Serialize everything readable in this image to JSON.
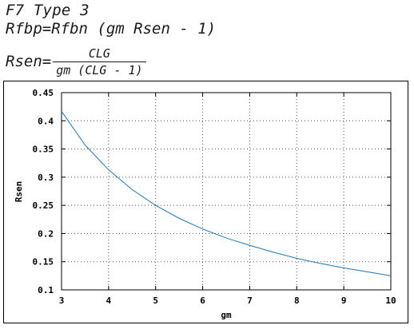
{
  "header": {
    "title": "F7 Type 3",
    "eq1_text": "Rfbp=Rfbn (gm Rsen - 1)",
    "eq2_lhs": "Rsen=",
    "eq2_numerator": "CLG",
    "eq2_denominator": "gm (CLG - 1)"
  },
  "chart_data": {
    "type": "line",
    "xlabel": "gm",
    "ylabel": "Rsen",
    "xlim": [
      3,
      10
    ],
    "ylim": [
      0.1,
      0.45
    ],
    "x_ticks": [
      "3",
      "4",
      "5",
      "6",
      "7",
      "8",
      "9",
      "10"
    ],
    "y_ticks": [
      "0.1",
      "0.15",
      "0.2",
      "0.25",
      "0.3",
      "0.35",
      "0.4",
      "0.45"
    ],
    "grid": true,
    "series": [
      {
        "color": "#1f77b4",
        "x": [
          3,
          3.5,
          4,
          4.5,
          5,
          5.5,
          6,
          6.5,
          7,
          7.5,
          8,
          8.5,
          9,
          9.5,
          10
        ],
        "y": [
          0.417,
          0.357,
          0.313,
          0.278,
          0.25,
          0.227,
          0.208,
          0.192,
          0.179,
          0.167,
          0.156,
          0.147,
          0.139,
          0.132,
          0.125
        ]
      }
    ]
  }
}
